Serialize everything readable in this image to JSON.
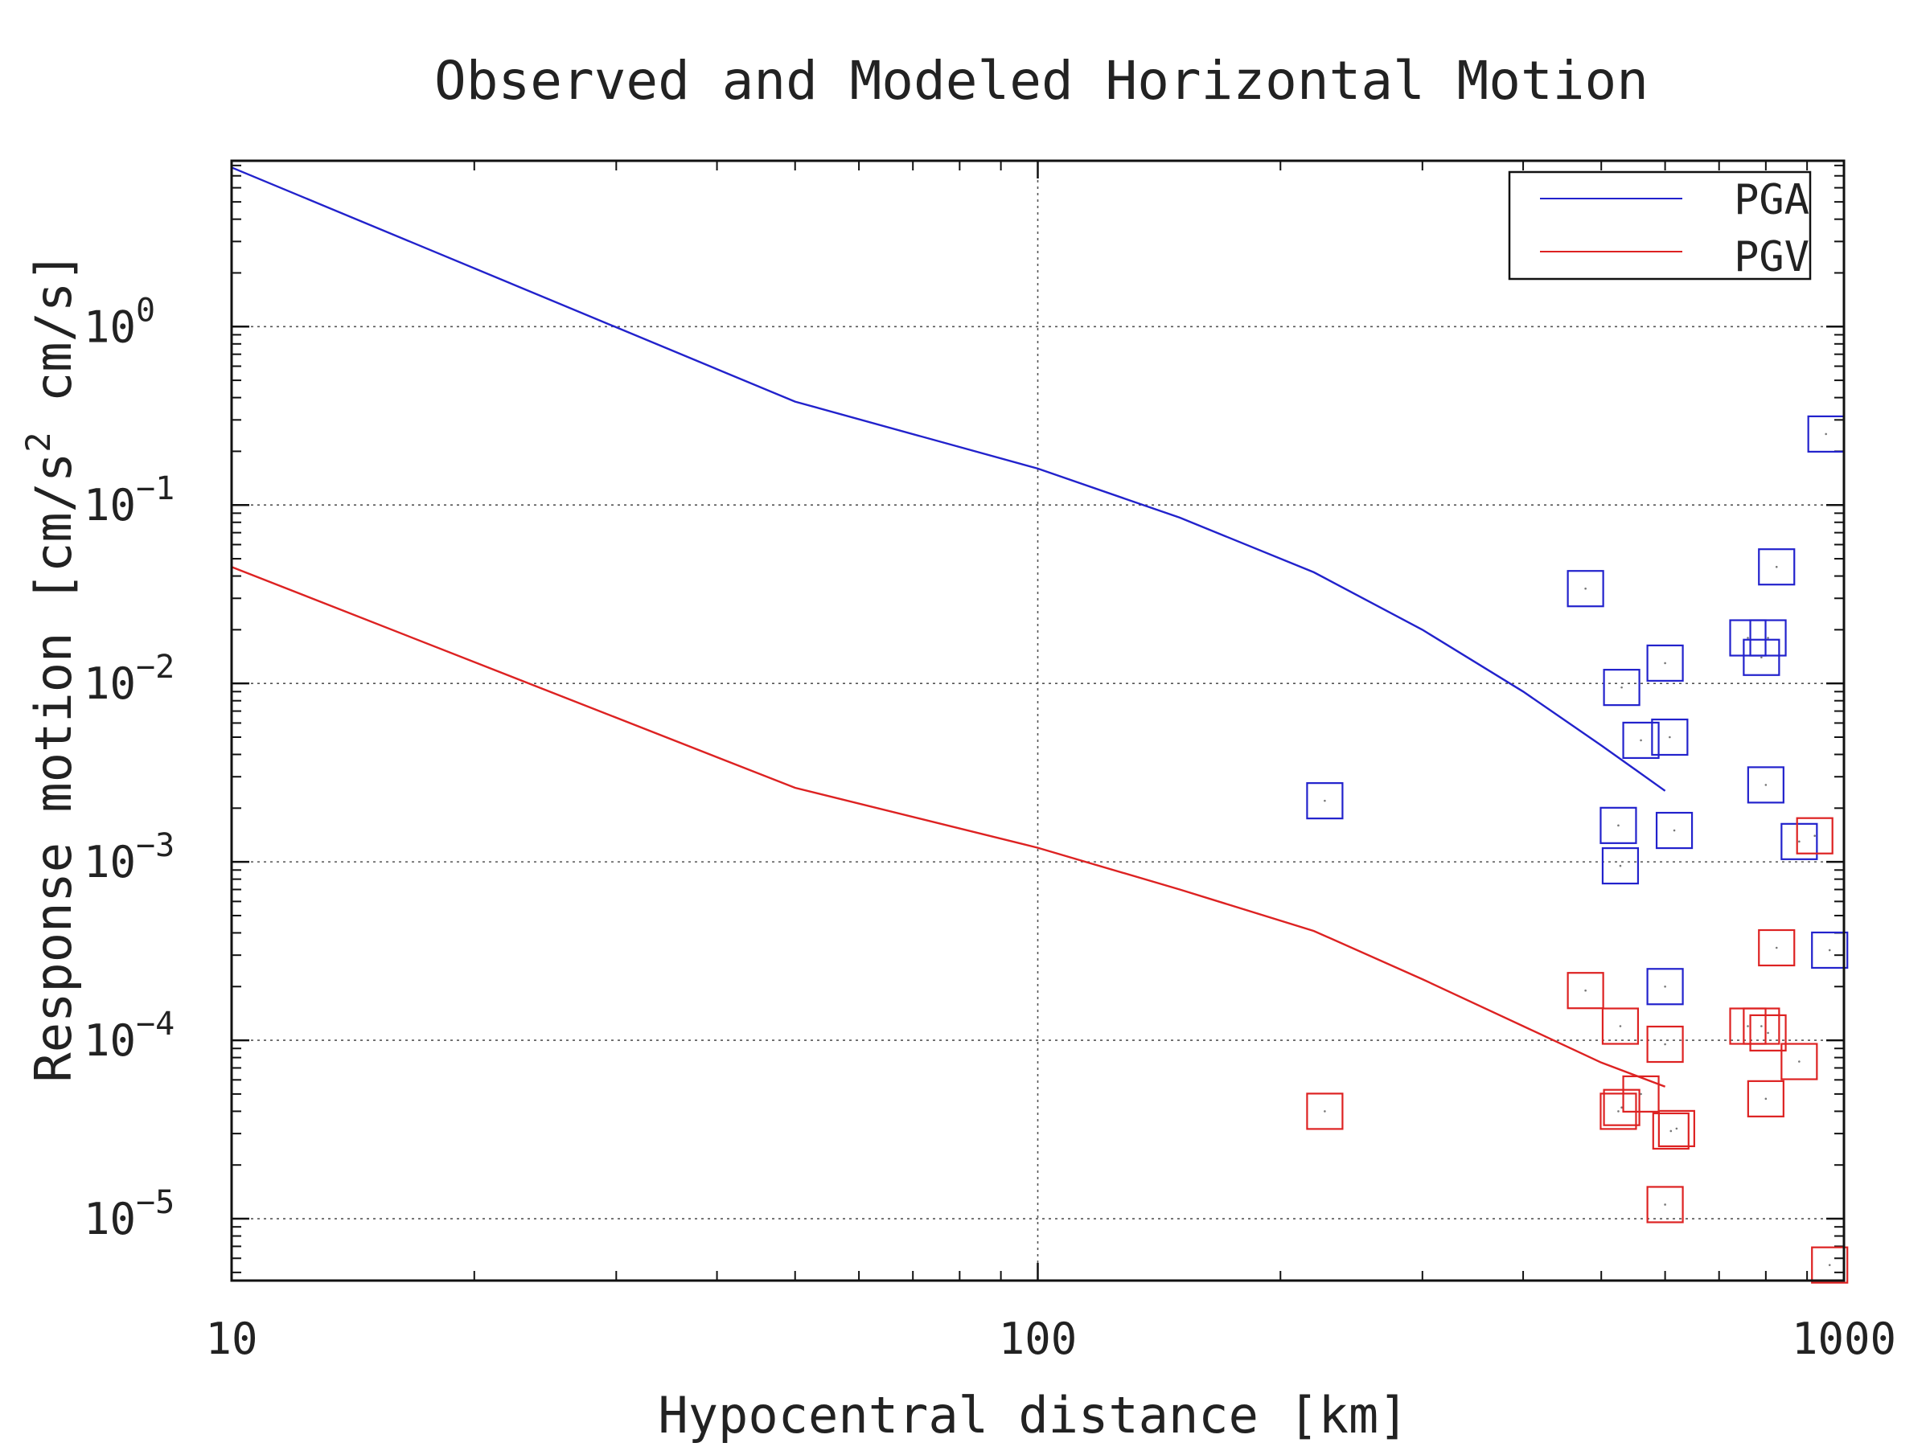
{
  "chart_data": {
    "type": "scatter",
    "title": "Observed and Modeled Horizontal Motion",
    "xlabel": "Hypocentral distance [km]",
    "ylabel_main": "Response motion [cm/s",
    "ylabel_sup": "2",
    "ylabel_tail": "  cm/s]",
    "x_scale": "log",
    "y_scale": "log",
    "xlim": [
      10,
      1000
    ],
    "ylim": [
      4.5e-06,
      8.5
    ],
    "x_ticks": [
      {
        "value": 10,
        "label": "10"
      },
      {
        "value": 100,
        "label": "100"
      },
      {
        "value": 1000,
        "label": "1000"
      }
    ],
    "y_ticks": [
      {
        "value": 1,
        "base": "10",
        "exp": "0"
      },
      {
        "value": 0.1,
        "base": "10",
        "exp": "−1"
      },
      {
        "value": 0.01,
        "base": "10",
        "exp": "−2"
      },
      {
        "value": 0.001,
        "base": "10",
        "exp": "−3"
      },
      {
        "value": 0.0001,
        "base": "10",
        "exp": "−4"
      },
      {
        "value": 1e-05,
        "base": "10",
        "exp": "−5"
      }
    ],
    "grid": true,
    "legend_position": "top-right",
    "legend": [
      {
        "label": "PGA",
        "color": "#2222cc"
      },
      {
        "label": "PGV",
        "color": "#dd2222"
      }
    ],
    "model_lines": [
      {
        "name": "PGA",
        "color": "#2222cc",
        "x": [
          10,
          50,
          100,
          150,
          220,
          300,
          400,
          500,
          600
        ],
        "y": [
          7.8,
          0.38,
          0.16,
          0.085,
          0.042,
          0.02,
          0.009,
          0.0045,
          0.0025
        ]
      },
      {
        "name": "PGV",
        "color": "#dd2222",
        "x": [
          10,
          50,
          100,
          150,
          220,
          300,
          400,
          500,
          600
        ],
        "y": [
          0.045,
          0.0026,
          0.0012,
          0.0007,
          0.00041,
          0.00022,
          0.00012,
          7.5e-05,
          5.5e-05
        ]
      }
    ],
    "observations": [
      {
        "name": "PGA",
        "color": "#2222cc",
        "points": [
          [
            227,
            0.0022
          ],
          [
            478,
            0.034
          ],
          [
            530,
            0.0095
          ],
          [
            525,
            0.0016
          ],
          [
            528,
            0.00095
          ],
          [
            560,
            0.0048
          ],
          [
            600,
            0.013
          ],
          [
            608,
            0.005
          ],
          [
            616,
            0.0015
          ],
          [
            600,
            0.0002
          ],
          [
            760,
            0.018
          ],
          [
            805,
            0.018
          ],
          [
            790,
            0.014
          ],
          [
            800,
            0.0027
          ],
          [
            825,
            0.045
          ],
          [
            880,
            0.0013
          ],
          [
            950,
            0.25
          ],
          [
            960,
            0.00032
          ]
        ]
      },
      {
        "name": "PGV",
        "color": "#dd2222",
        "points": [
          [
            227,
            4e-05
          ],
          [
            478,
            0.00019
          ],
          [
            528,
            0.00012
          ],
          [
            525,
            4e-05
          ],
          [
            530,
            4.2e-05
          ],
          [
            560,
            5e-05
          ],
          [
            600,
            9.5e-05
          ],
          [
            610,
            3.1e-05
          ],
          [
            620,
            3.2e-05
          ],
          [
            600,
            1.2e-05
          ],
          [
            760,
            0.00012
          ],
          [
            790,
            0.00012
          ],
          [
            805,
            0.00011
          ],
          [
            800,
            4.7e-05
          ],
          [
            825,
            0.00033
          ],
          [
            880,
            7.6e-05
          ],
          [
            920,
            0.0014
          ],
          [
            960,
            5.5e-06
          ]
        ]
      }
    ]
  }
}
